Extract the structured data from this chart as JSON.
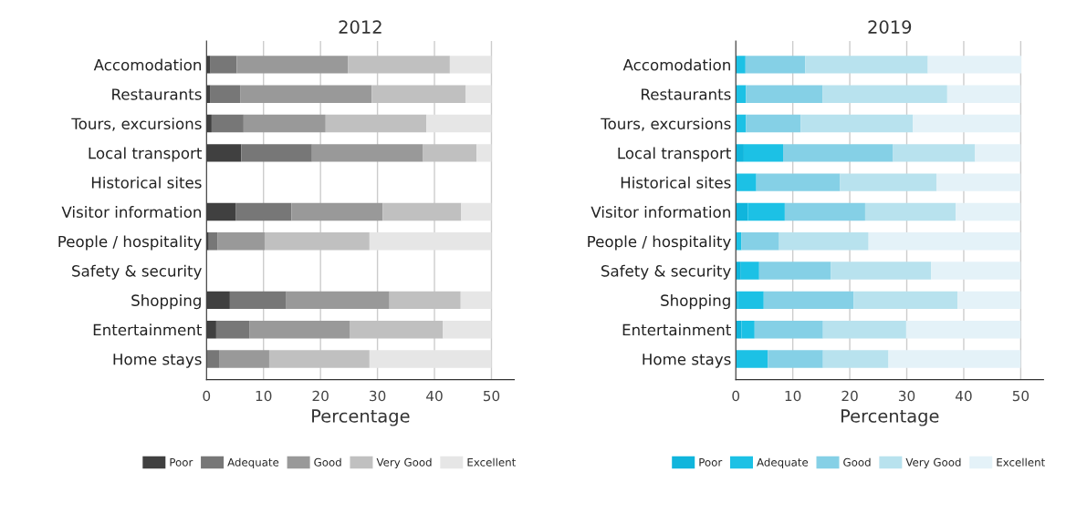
{
  "chart_data": [
    {
      "type": "bar",
      "orientation": "horizontal",
      "stacked": true,
      "title": "2012",
      "xlabel": "Percentage",
      "categories": [
        "Accomodation",
        "Restaurants",
        "Tours, excursions",
        "Local transport",
        "Historical sites",
        "Visitor information",
        "People / hospitality",
        "Safety & security",
        "Shopping",
        "Entertainment",
        "Home stays"
      ],
      "xlim": [
        0,
        54
      ],
      "xticks": [
        0,
        10,
        20,
        30,
        40,
        50
      ],
      "grid": "x",
      "legend": "bottom",
      "series": [
        {
          "name": "Poor",
          "color": "#404040",
          "values": [
            0.7,
            0.7,
            0.9,
            6.1,
            null,
            5.1,
            0.4,
            null,
            4.1,
            1.7,
            0
          ]
        },
        {
          "name": "Adequate",
          "color": "#777777",
          "values": [
            4.6,
            5.2,
            5.6,
            12.4,
            null,
            9.8,
            1.5,
            null,
            9.9,
            5.8,
            2.2
          ]
        },
        {
          "name": "Good",
          "color": "#999999",
          "values": [
            19.5,
            23.1,
            14.4,
            19.5,
            null,
            16.0,
            8.3,
            null,
            18.1,
            17.6,
            8.8
          ]
        },
        {
          "name": "Very Good",
          "color": "#c0c0c0",
          "values": [
            17.9,
            16.5,
            17.7,
            9.4,
            null,
            13.8,
            18.4,
            null,
            12.5,
            16.4,
            17.6
          ]
        },
        {
          "name": "Excellent",
          "color": "#e6e6e6",
          "values": [
            7.3,
            4.5,
            11.4,
            2.6,
            null,
            5.3,
            21.4,
            null,
            5.4,
            8.5,
            21.4
          ]
        }
      ]
    },
    {
      "type": "bar",
      "orientation": "horizontal",
      "stacked": true,
      "title": "2019",
      "xlabel": "Percentage",
      "categories": [
        "Accomodation",
        "Restaurants",
        "Tours, excursions",
        "Local transport",
        "Historical sites",
        "Visitor information",
        "People / hospitality",
        "Safety & security",
        "Shopping",
        "Entertainment",
        "Home stays"
      ],
      "xlim": [
        0,
        54
      ],
      "xticks": [
        0,
        10,
        20,
        30,
        40,
        50
      ],
      "grid": "x",
      "legend": "bottom",
      "series": [
        {
          "name": "Poor",
          "color": "#10b5dc",
          "values": [
            0,
            0,
            0,
            1.4,
            0,
            2.1,
            0,
            0.9,
            0.4,
            1.0,
            0
          ]
        },
        {
          "name": "Adequate",
          "color": "#1cc1e5",
          "values": [
            1.7,
            1.8,
            1.8,
            6.9,
            3.6,
            6.5,
            1.0,
            3.2,
            4.5,
            2.3,
            5.6
          ]
        },
        {
          "name": "Good",
          "color": "#85d0e6",
          "values": [
            10.5,
            13.4,
            9.6,
            19.3,
            14.7,
            14.1,
            6.6,
            12.6,
            15.8,
            12.0,
            9.7
          ]
        },
        {
          "name": "Very Good",
          "color": "#b8e2ee",
          "values": [
            21.5,
            21.9,
            19.7,
            14.4,
            16.9,
            15.9,
            15.7,
            17.6,
            18.2,
            14.6,
            11.5
          ]
        },
        {
          "name": "Excellent",
          "color": "#e4f2f8",
          "values": [
            16.4,
            12.9,
            18.9,
            8.0,
            14.8,
            11.4,
            26.7,
            15.7,
            11.1,
            20.1,
            23.2
          ]
        }
      ]
    }
  ]
}
